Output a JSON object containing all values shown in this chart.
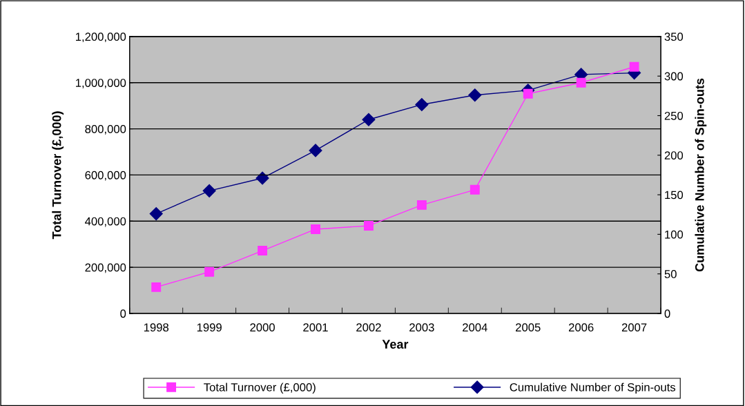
{
  "chart_data": {
    "type": "line",
    "xlabel": "Year",
    "ylabel": "Total Turnover (£,000)",
    "y2label": "Cumulative Number of Spin-outs",
    "categories": [
      "1998",
      "1999",
      "2000",
      "2001",
      "2002",
      "2003",
      "2004",
      "2005",
      "2006",
      "2007"
    ],
    "series": [
      {
        "name": "Total Turnover (£,000)",
        "color": "#ff33ff",
        "marker": "square",
        "values": [
          114000,
          180000,
          272000,
          365000,
          380000,
          470000,
          536000,
          952000,
          1000000,
          1069000
        ]
      },
      {
        "name": "Cumulative Number of Spin-outs",
        "color": "#000080",
        "marker": "diamond",
        "axis": "y2",
        "values": [
          126,
          155,
          171,
          206,
          245,
          264,
          276,
          282,
          302,
          304
        ]
      }
    ],
    "ylim": [
      0,
      1200000
    ],
    "yticks": [
      {
        "value": 0,
        "label": "0"
      },
      {
        "value": 200000,
        "label": "200,000"
      },
      {
        "value": 400000,
        "label": "400,000"
      },
      {
        "value": 600000,
        "label": "600,000"
      },
      {
        "value": 800000,
        "label": "800,000"
      },
      {
        "value": 1000000,
        "label": "1,000,000"
      },
      {
        "value": 1200000,
        "label": "1,200,000"
      }
    ],
    "y2lim": [
      0,
      350
    ],
    "y2ticks": [
      0,
      50,
      100,
      150,
      200,
      250,
      300,
      350
    ],
    "grid": "y",
    "legend": "bottom",
    "line_style": "solid"
  }
}
